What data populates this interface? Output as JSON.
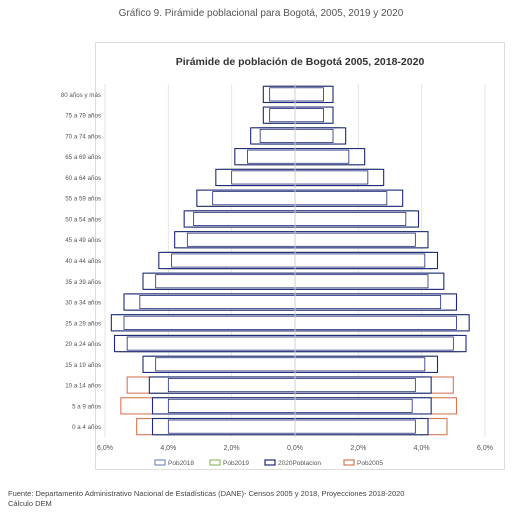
{
  "figure_caption": "Gráfico 9. Pirámide poblacional para Bogotá, 2005, 2019 y 2020",
  "source_lines": [
    "Fuente: Departamento Administrativo Nacional de Estadísticas (DANE)- Censos 2005 y 2018, Proyecciones 2018-2020",
    "Cálculo DEM"
  ],
  "chart_data": {
    "type": "bar",
    "orientation": "horizontal-pyramid",
    "title": "Pirámide de población de Bogotá 2005, 2018-2020",
    "categories": [
      "0 a 4 años",
      "5 a 9 años",
      "10 a 14 años",
      "15 a 19 años",
      "20 a 24 años",
      "25 a 29 años",
      "30 a 34 años",
      "35 a 39 años",
      "40 a 44 años",
      "45 a 49 años",
      "50 a 54 años",
      "55 a 59 años",
      "60 a 64 años",
      "65 a 69 años",
      "70 a 74 años",
      "75 a 79 años",
      "80 años y más"
    ],
    "x_tick_labels": [
      "6,0%",
      "4,0%",
      "2,0%",
      "0,0%",
      "2,0%",
      "4,0%",
      "6,0%"
    ],
    "x_range": [
      -6,
      6
    ],
    "grid": true,
    "legend_position": "bottom",
    "series": [
      {
        "name": "Pob2018",
        "color": "#7b8fc4",
        "left": [
          4.3,
          4.4,
          4.4,
          4.6,
          5.5,
          5.6,
          5.2,
          4.6,
          4.1,
          3.6,
          3.3,
          2.9,
          2.3,
          1.7,
          1.2,
          0.9,
          0.9
        ],
        "right": [
          4.0,
          4.1,
          4.1,
          4.3,
          5.2,
          5.3,
          4.9,
          4.5,
          4.3,
          4.0,
          3.7,
          3.2,
          2.6,
          2.0,
          1.4,
          1.1,
          1.1
        ]
      },
      {
        "name": "Pob2019",
        "color": "#8fbf6a",
        "left": [
          4.4,
          4.5,
          4.5,
          4.7,
          5.6,
          5.7,
          5.3,
          4.7,
          4.2,
          3.7,
          3.4,
          3.0,
          2.4,
          1.8,
          1.3,
          0.95,
          0.95
        ],
        "right": [
          4.1,
          4.2,
          4.2,
          4.4,
          5.3,
          5.4,
          5.0,
          4.6,
          4.4,
          4.1,
          3.8,
          3.3,
          2.7,
          2.1,
          1.5,
          1.15,
          1.15
        ]
      },
      {
        "name": "2020Poblacion",
        "color": "#1f2a78",
        "left": [
          4.5,
          4.5,
          4.6,
          4.8,
          5.7,
          5.8,
          5.4,
          4.8,
          4.3,
          3.8,
          3.5,
          3.1,
          2.5,
          1.9,
          1.4,
          1.0,
          1.0
        ],
        "right": [
          4.2,
          4.3,
          4.3,
          4.5,
          5.4,
          5.5,
          5.1,
          4.7,
          4.5,
          4.2,
          3.9,
          3.4,
          2.8,
          2.2,
          1.6,
          1.2,
          1.2
        ]
      },
      {
        "name": "Pob2005",
        "color": "#d4785a",
        "left": [
          5.0,
          5.5,
          5.3,
          4.7,
          5.4,
          5.1,
          4.6,
          4.3,
          4.0,
          3.6,
          3.2,
          2.5,
          1.9,
          1.4,
          1.0,
          0.8,
          0.8
        ],
        "right": [
          4.8,
          5.1,
          5.0,
          4.4,
          5.1,
          4.9,
          4.6,
          4.1,
          4.0,
          3.7,
          3.3,
          2.7,
          2.0,
          1.5,
          1.1,
          0.9,
          0.9
        ]
      }
    ],
    "inner_white_bars": {
      "left": [
        4.0,
        4.0,
        4.0,
        4.4,
        5.3,
        5.4,
        4.9,
        4.4,
        3.9,
        3.4,
        3.2,
        2.6,
        2.0,
        1.5,
        1.1,
        0.8,
        0.8
      ],
      "right": [
        3.8,
        3.7,
        3.8,
        4.1,
        5.0,
        5.1,
        4.6,
        4.2,
        4.1,
        3.8,
        3.5,
        2.9,
        2.3,
        1.7,
        1.2,
        0.9,
        0.9
      ]
    }
  }
}
